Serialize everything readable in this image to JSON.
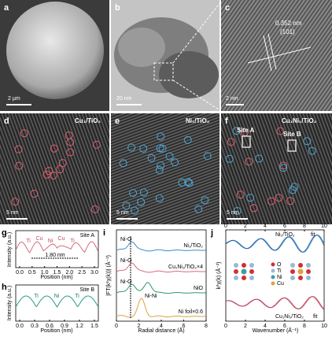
{
  "panel_a": {
    "label": "a",
    "scale": "2 μm"
  },
  "panel_b": {
    "label": "b",
    "scale": "20 nm"
  },
  "panel_c": {
    "label": "c",
    "spacing": "0.352 nm",
    "plane": "(101)",
    "scale": "2 nm"
  },
  "panel_d": {
    "label": "d",
    "title": "Cu₁/TiO₂",
    "scale": "5 nm"
  },
  "panel_e": {
    "label": "e",
    "title": "Ni₁/TiO₂",
    "scale": "5 nm"
  },
  "panel_f": {
    "label": "f",
    "title": "Cu₁Ni₁/TiO₂",
    "site_a": "Site A",
    "site_b": "Site B",
    "scale": "5 nm"
  },
  "panel_g": {
    "label": "g",
    "site": "Site A",
    "ylabel": "Intensity (a.u.)",
    "xlabel": "Position (nm)",
    "distance": "1.80 nm",
    "atoms": [
      "Ti",
      "Cu",
      "Ni",
      "Cu",
      "Ti"
    ],
    "xticks": [
      "0.0",
      "0.5",
      "1.0",
      "1.5",
      "2.0",
      "2.5",
      "3.0"
    ]
  },
  "panel_h": {
    "label": "h",
    "site": "Site B",
    "ylabel": "Intensity (a.u.)",
    "xlabel": "Position (nm)",
    "atoms": [
      "Ti",
      "Ni",
      "Ti"
    ],
    "xticks": [
      "0.0",
      "0.3",
      "0.6",
      "0.9",
      "1.2",
      "1.5"
    ]
  },
  "panel_i": {
    "label": "i",
    "ylabel": "|FT(k²χ(k))| (Å⁻³)",
    "xlabel": "Radial distance (Å)",
    "xticks": [
      "0",
      "2",
      "4",
      "6",
      "8"
    ],
    "bond_labels": [
      "Ni-O",
      "Ni-O",
      "Ni-O",
      "Ni-Ni"
    ],
    "series": [
      "Ni₁/TiO₂",
      "Cu₁Ni₁/TiO₂×4",
      "NiO",
      "Ni foil×0.6"
    ]
  },
  "panel_j": {
    "label": "j",
    "ylabel": "k²χ(k) (Å⁻²)",
    "xlabel": "Wavenumber (Å⁻¹)",
    "xticks": [
      "0",
      "2",
      "4",
      "6",
      "8",
      "10"
    ],
    "top_series": "Ni₁/TiO₂",
    "bottom_series": "Cu₁Ni₁/TiO₂",
    "fit": "fit",
    "legend": [
      "O",
      "Ti",
      "Ni",
      "Cu"
    ]
  }
}
